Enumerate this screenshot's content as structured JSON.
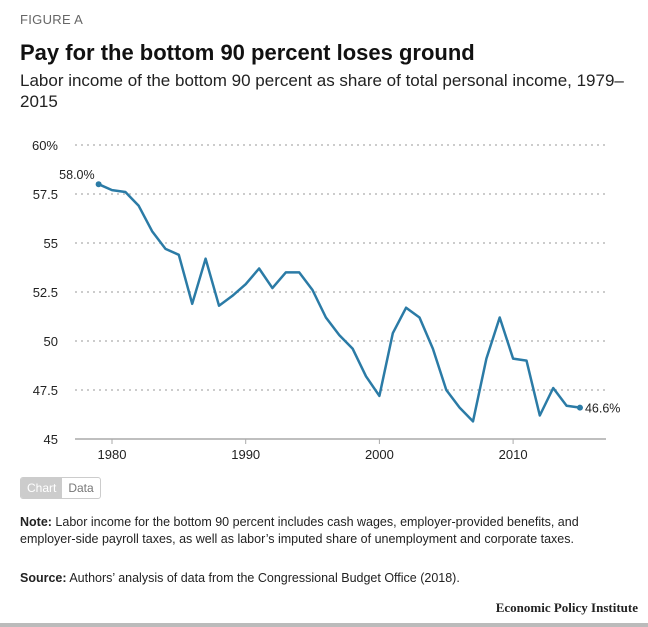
{
  "figure_label": "FIGURE A",
  "chart_data": {
    "type": "line",
    "title": "Pay for the bottom 90 percent loses ground",
    "subtitle": "Labor income of the bottom 90 percent as share of total personal income, 1979–2015",
    "xlabel": "",
    "ylabel": "",
    "ylim": [
      45,
      60
    ],
    "xlim": [
      1979,
      2015
    ],
    "yticks": [
      "60%",
      "57.5",
      "55",
      "52.5",
      "50",
      "47.5",
      "45"
    ],
    "ytick_values": [
      60,
      57.5,
      55,
      52.5,
      50,
      47.5,
      45
    ],
    "xticks": [
      "1980",
      "1990",
      "2000",
      "2010"
    ],
    "xtick_values": [
      1980,
      1990,
      2000,
      2010
    ],
    "grid": true,
    "color": "#2b7ba6",
    "x": [
      1979,
      1980,
      1981,
      1982,
      1983,
      1984,
      1985,
      1986,
      1987,
      1988,
      1989,
      1990,
      1991,
      1992,
      1993,
      1994,
      1995,
      1996,
      1997,
      1998,
      1999,
      2000,
      2001,
      2002,
      2003,
      2004,
      2005,
      2006,
      2007,
      2008,
      2009,
      2010,
      2011,
      2012,
      2013,
      2014,
      2015
    ],
    "values": [
      58.0,
      57.7,
      57.6,
      56.9,
      55.6,
      54.7,
      54.4,
      51.9,
      54.2,
      51.8,
      52.3,
      52.9,
      53.7,
      52.7,
      53.5,
      53.5,
      52.6,
      51.2,
      50.3,
      49.6,
      48.2,
      47.2,
      50.4,
      51.7,
      51.2,
      49.6,
      47.5,
      46.6,
      45.9,
      49.1,
      51.2,
      49.1,
      49.0,
      46.2,
      47.6,
      46.7,
      46.6
    ],
    "annotations": {
      "start": "58.0%",
      "end": "46.6%"
    }
  },
  "toggle": {
    "chart": "Chart",
    "data": "Data"
  },
  "note": {
    "label": "Note:",
    "text": " Labor income for the bottom 90 percent includes cash wages, employer-provided benefits, and employer-side payroll taxes, as well as labor’s imputed share of unemployment and corporate taxes."
  },
  "source": {
    "label": "Source:",
    "text": " Authors’ analysis of data from the Congressional Budget Office (2018)."
  },
  "brand": "Economic Policy Institute"
}
